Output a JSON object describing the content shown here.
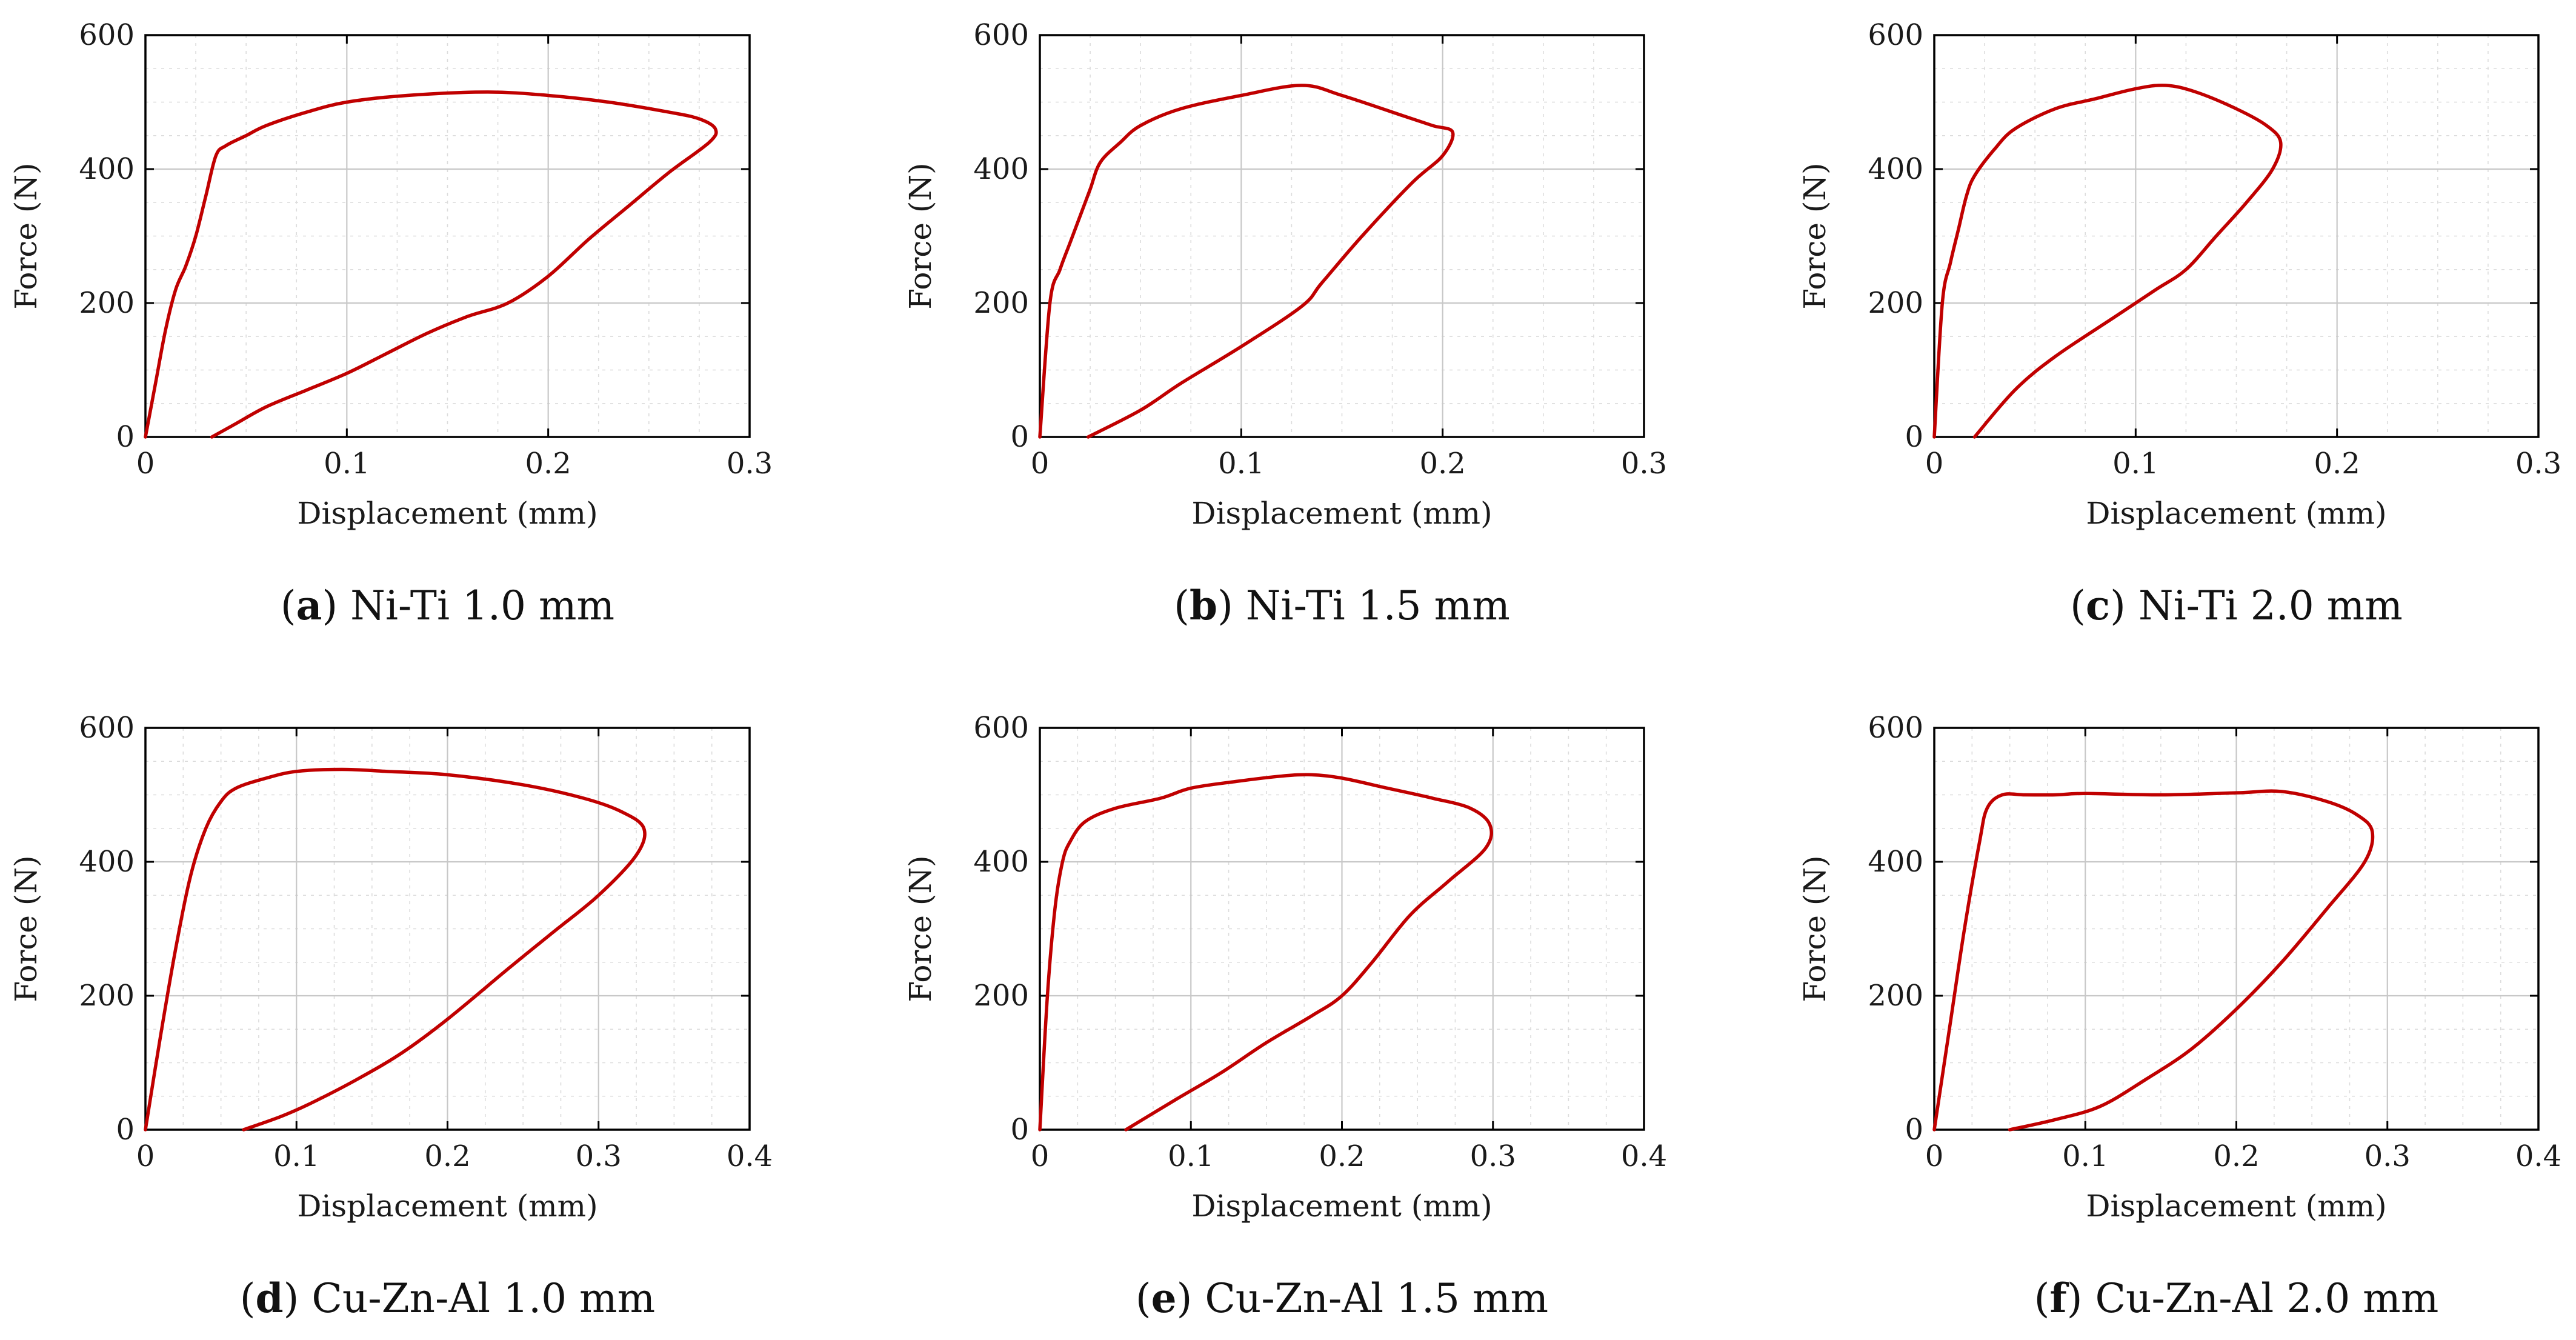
{
  "figure": {
    "curve_color": "#c00000"
  },
  "chart_data": [
    {
      "type": "line",
      "label": "a",
      "caption": "Ni-Ti 1.0 mm",
      "xlabel": "Displacement (mm)",
      "ylabel": "Force (N)",
      "xlim": [
        0,
        0.3
      ],
      "ylim": [
        0,
        600
      ],
      "xticks": [
        0,
        0.1,
        0.2,
        0.3
      ],
      "xtick_labels": [
        "0",
        "0.1",
        "0.2",
        "0.3"
      ],
      "yticks": [
        0,
        200,
        400,
        600
      ],
      "ytick_labels": [
        "0",
        "200",
        "400",
        "600"
      ],
      "grid": true,
      "series": [
        {
          "name": "Ni-Ti 1.0 mm",
          "x": [
            0,
            0.005,
            0.01,
            0.015,
            0.02,
            0.025,
            0.03,
            0.035,
            0.04,
            0.05,
            0.06,
            0.08,
            0.1,
            0.13,
            0.17,
            0.2,
            0.23,
            0.26,
            0.275,
            0.283,
            0.28,
            0.26,
            0.24,
            0.22,
            0.2,
            0.18,
            0.16,
            0.14,
            0.12,
            0.1,
            0.08,
            0.06,
            0.045,
            0.033
          ],
          "y": [
            0,
            80,
            160,
            220,
            255,
            300,
            360,
            420,
            435,
            450,
            465,
            485,
            500,
            510,
            515,
            510,
            500,
            485,
            475,
            460,
            440,
            395,
            345,
            295,
            240,
            200,
            180,
            155,
            125,
            95,
            70,
            45,
            20,
            0
          ]
        }
      ]
    },
    {
      "type": "line",
      "label": "b",
      "caption": "Ni-Ti 1.5 mm",
      "xlabel": "Displacement (mm)",
      "ylabel": "Force (N)",
      "xlim": [
        0,
        0.3
      ],
      "ylim": [
        0,
        600
      ],
      "xticks": [
        0,
        0.1,
        0.2,
        0.3
      ],
      "xtick_labels": [
        "0",
        "0.1",
        "0.2",
        "0.3"
      ],
      "yticks": [
        0,
        200,
        400,
        600
      ],
      "ytick_labels": [
        "0",
        "200",
        "400",
        "600"
      ],
      "grid": true,
      "series": [
        {
          "name": "Ni-Ti 1.5 mm",
          "x": [
            0,
            0.005,
            0.01,
            0.015,
            0.02,
            0.025,
            0.03,
            0.04,
            0.05,
            0.07,
            0.1,
            0.13,
            0.15,
            0.18,
            0.195,
            0.205,
            0.2,
            0.185,
            0.16,
            0.14,
            0.13,
            0.1,
            0.07,
            0.05,
            0.024
          ],
          "y": [
            0,
            200,
            250,
            290,
            330,
            370,
            410,
            440,
            465,
            490,
            510,
            525,
            510,
            480,
            465,
            455,
            420,
            380,
            300,
            230,
            195,
            135,
            80,
            40,
            0
          ]
        }
      ]
    },
    {
      "type": "line",
      "label": "c",
      "caption": "Ni-Ti 2.0 mm",
      "xlabel": "Displacement (mm)",
      "ylabel": "Force (N)",
      "xlim": [
        0,
        0.3
      ],
      "ylim": [
        0,
        600
      ],
      "xticks": [
        0,
        0.1,
        0.2,
        0.3
      ],
      "xtick_labels": [
        "0",
        "0.1",
        "0.2",
        "0.3"
      ],
      "yticks": [
        0,
        200,
        400,
        600
      ],
      "ytick_labels": [
        "0",
        "200",
        "400",
        "600"
      ],
      "grid": true,
      "series": [
        {
          "name": "Ni-Ti 2.0 mm",
          "x": [
            0,
            0.004,
            0.008,
            0.012,
            0.016,
            0.02,
            0.03,
            0.04,
            0.06,
            0.08,
            0.1,
            0.115,
            0.13,
            0.15,
            0.165,
            0.172,
            0.168,
            0.155,
            0.14,
            0.125,
            0.11,
            0.09,
            0.06,
            0.04,
            0.02
          ],
          "y": [
            0,
            200,
            260,
            310,
            360,
            390,
            430,
            460,
            490,
            505,
            520,
            525,
            515,
            490,
            465,
            440,
            400,
            350,
            300,
            250,
            220,
            180,
            120,
            70,
            0
          ]
        }
      ]
    },
    {
      "type": "line",
      "label": "d",
      "caption": "Cu-Zn-Al 1.0 mm",
      "xlabel": "Displacement (mm)",
      "ylabel": "Force (N)",
      "xlim": [
        0,
        0.4
      ],
      "ylim": [
        0,
        600
      ],
      "xticks": [
        0,
        0.1,
        0.2,
        0.3,
        0.4
      ],
      "xtick_labels": [
        "0",
        "0.1",
        "0.2",
        "0.3",
        "0.4"
      ],
      "yticks": [
        0,
        200,
        400,
        600
      ],
      "ytick_labels": [
        "0",
        "200",
        "400",
        "600"
      ],
      "grid": true,
      "series": [
        {
          "name": "Cu-Zn-Al 1.0 mm",
          "x": [
            0,
            0.01,
            0.02,
            0.03,
            0.04,
            0.05,
            0.06,
            0.08,
            0.1,
            0.13,
            0.16,
            0.2,
            0.25,
            0.29,
            0.315,
            0.33,
            0.325,
            0.3,
            0.27,
            0.24,
            0.2,
            0.17,
            0.14,
            0.11,
            0.09,
            0.065
          ],
          "y": [
            0,
            140,
            270,
            380,
            450,
            490,
            510,
            525,
            535,
            538,
            535,
            530,
            515,
            495,
            475,
            450,
            410,
            350,
            295,
            240,
            165,
            115,
            75,
            40,
            20,
            0
          ]
        }
      ]
    },
    {
      "type": "line",
      "label": "e",
      "caption": "Cu-Zn-Al 1.5 mm",
      "xlabel": "Displacement (mm)",
      "ylabel": "Force (N)",
      "xlim": [
        0,
        0.4
      ],
      "ylim": [
        0,
        600
      ],
      "xticks": [
        0,
        0.1,
        0.2,
        0.3,
        0.4
      ],
      "xtick_labels": [
        "0",
        "0.1",
        "0.2",
        "0.3",
        "0.4"
      ],
      "yticks": [
        0,
        200,
        400,
        600
      ],
      "ytick_labels": [
        "0",
        "200",
        "400",
        "600"
      ],
      "grid": true,
      "series": [
        {
          "name": "Cu-Zn-Al 1.5 mm",
          "x": [
            0,
            0.005,
            0.01,
            0.015,
            0.02,
            0.03,
            0.05,
            0.08,
            0.1,
            0.13,
            0.16,
            0.18,
            0.2,
            0.23,
            0.26,
            0.285,
            0.298,
            0.295,
            0.27,
            0.245,
            0.22,
            0.2,
            0.18,
            0.15,
            0.12,
            0.09,
            0.057
          ],
          "y": [
            0,
            200,
            330,
            400,
            430,
            460,
            480,
            495,
            510,
            520,
            528,
            530,
            525,
            510,
            495,
            480,
            455,
            420,
            370,
            320,
            250,
            200,
            170,
            130,
            85,
            45,
            0
          ]
        }
      ]
    },
    {
      "type": "line",
      "label": "f",
      "caption": "Cu-Zn-Al 2.0 mm",
      "xlabel": "Displacement (mm)",
      "ylabel": "Force (N)",
      "xlim": [
        0,
        0.4
      ],
      "ylim": [
        0,
        600
      ],
      "xticks": [
        0,
        0.1,
        0.2,
        0.3,
        0.4
      ],
      "xtick_labels": [
        "0",
        "0.1",
        "0.2",
        "0.3",
        "0.4"
      ],
      "yticks": [
        0,
        200,
        400,
        600
      ],
      "ytick_labels": [
        "0",
        "200",
        "400",
        "600"
      ],
      "grid": true,
      "series": [
        {
          "name": "Cu-Zn-Al 2.0 mm",
          "x": [
            0,
            0.01,
            0.02,
            0.03,
            0.035,
            0.045,
            0.06,
            0.08,
            0.1,
            0.15,
            0.2,
            0.23,
            0.26,
            0.28,
            0.29,
            0.285,
            0.26,
            0.23,
            0.2,
            0.17,
            0.14,
            0.11,
            0.08,
            0.05
          ],
          "y": [
            0,
            150,
            300,
            430,
            480,
            500,
            500,
            500,
            502,
            500,
            503,
            505,
            490,
            470,
            445,
            400,
            330,
            250,
            180,
            120,
            75,
            35,
            15,
            0
          ]
        }
      ]
    }
  ]
}
